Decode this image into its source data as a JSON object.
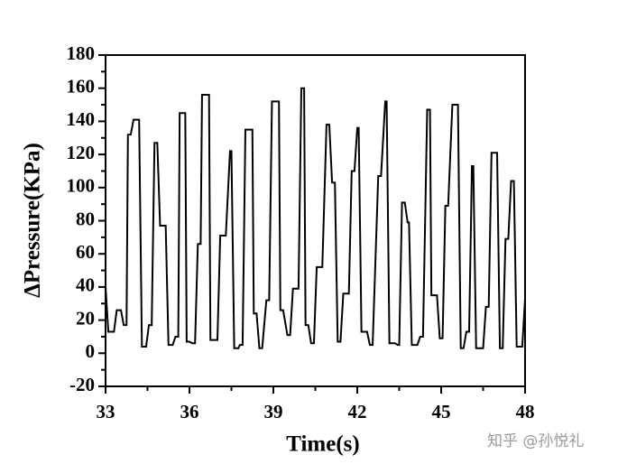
{
  "chart_data": {
    "type": "line",
    "xlabel": "Time(s)",
    "ylabel": "ΔPressure(KPa)",
    "watermark": "知乎 @孙悦礼",
    "xlim": [
      33,
      48
    ],
    "xticks": [
      33,
      36,
      39,
      42,
      45,
      48
    ],
    "ylim": [
      -20,
      180
    ],
    "yticks": [
      -20,
      0,
      20,
      40,
      60,
      80,
      100,
      120,
      140,
      160,
      180
    ],
    "series": [
      {
        "color": "#000000",
        "x": [
          33.0,
          33.1,
          33.3,
          33.4,
          33.55,
          33.65,
          33.75,
          33.8,
          33.9,
          34.0,
          34.2,
          34.3,
          34.45,
          34.55,
          34.65,
          34.75,
          34.85,
          34.95,
          35.15,
          35.25,
          35.4,
          35.5,
          35.6,
          35.65,
          35.85,
          35.9,
          36.0,
          36.1,
          36.2,
          36.3,
          36.4,
          36.45,
          36.7,
          36.75,
          37.0,
          37.1,
          37.3,
          37.45,
          37.5,
          37.6,
          37.75,
          37.8,
          37.9,
          38.0,
          38.25,
          38.3,
          38.4,
          38.5,
          38.6,
          38.75,
          38.85,
          38.95,
          39.2,
          39.25,
          39.35,
          39.5,
          39.6,
          39.7,
          39.9,
          40.0,
          40.1,
          40.15,
          40.25,
          40.35,
          40.45,
          40.55,
          40.75,
          40.9,
          41.0,
          41.1,
          41.2,
          41.3,
          41.4,
          41.5,
          41.7,
          41.8,
          41.9,
          42.0,
          42.05,
          42.15,
          42.35,
          42.45,
          42.55,
          42.75,
          42.85,
          43.0,
          43.05,
          43.15,
          43.35,
          43.45,
          43.5,
          43.6,
          43.7,
          43.8,
          43.85,
          43.95,
          44.15,
          44.25,
          44.35,
          44.5,
          44.6,
          44.65,
          44.85,
          44.95,
          45.05,
          45.15,
          45.25,
          45.4,
          45.6,
          45.7,
          45.8,
          45.9,
          46.0,
          46.1,
          46.15,
          46.25,
          46.5,
          46.6,
          46.7,
          46.8,
          47.0,
          47.1,
          47.2,
          47.3,
          47.4,
          47.5,
          47.6,
          47.7,
          47.9,
          48.0
        ],
        "values": [
          40,
          13,
          13,
          26,
          26,
          17,
          17,
          132,
          132,
          141,
          141,
          4,
          4,
          17,
          17,
          127,
          127,
          77,
          77,
          5,
          5,
          10,
          10,
          145,
          145,
          7,
          7,
          6,
          6,
          66,
          66,
          156,
          156,
          8,
          8,
          71,
          71,
          122,
          122,
          3,
          3,
          5,
          5,
          135,
          135,
          24,
          24,
          3,
          3,
          32,
          32,
          152,
          152,
          26,
          26,
          11,
          11,
          39,
          39,
          160,
          160,
          17,
          17,
          6,
          6,
          52,
          52,
          138,
          138,
          103,
          103,
          7,
          7,
          36,
          36,
          110,
          110,
          136,
          136,
          13,
          13,
          5,
          5,
          107,
          107,
          152,
          152,
          6,
          6,
          5,
          5,
          91,
          91,
          79,
          79,
          5,
          5,
          10,
          10,
          147,
          147,
          35,
          35,
          9,
          9,
          89,
          89,
          150,
          150,
          3,
          3,
          13,
          13,
          113,
          113,
          3,
          3,
          28,
          28,
          121,
          121,
          3,
          3,
          69,
          69,
          104,
          104,
          4,
          4,
          33
        ]
      }
    ]
  }
}
